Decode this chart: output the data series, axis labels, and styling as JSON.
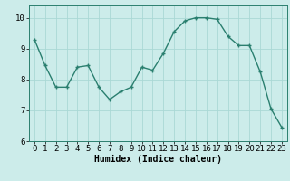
{
  "x": [
    0,
    1,
    2,
    3,
    4,
    5,
    6,
    7,
    8,
    9,
    10,
    11,
    12,
    13,
    14,
    15,
    16,
    17,
    18,
    19,
    20,
    21,
    22,
    23
  ],
  "y": [
    9.3,
    8.45,
    7.75,
    7.75,
    8.4,
    8.45,
    7.75,
    7.35,
    7.6,
    7.75,
    8.4,
    8.3,
    8.85,
    9.55,
    9.9,
    10.0,
    10.0,
    9.95,
    9.4,
    9.1,
    9.1,
    8.25,
    7.05,
    6.45
  ],
  "line_color": "#2a7f6f",
  "marker": "+",
  "marker_size": 3,
  "marker_linewidth": 1.0,
  "bg_color": "#ccecea",
  "grid_color": "#aad8d5",
  "xlabel": "Humidex (Indice chaleur)",
  "ylim": [
    6,
    10.4
  ],
  "xlim": [
    -0.5,
    23.5
  ],
  "yticks": [
    6,
    7,
    8,
    9,
    10
  ],
  "xticks": [
    0,
    1,
    2,
    3,
    4,
    5,
    6,
    7,
    8,
    9,
    10,
    11,
    12,
    13,
    14,
    15,
    16,
    17,
    18,
    19,
    20,
    21,
    22,
    23
  ],
  "xlabel_fontsize": 7,
  "tick_fontsize": 6.5,
  "line_width": 1.0
}
